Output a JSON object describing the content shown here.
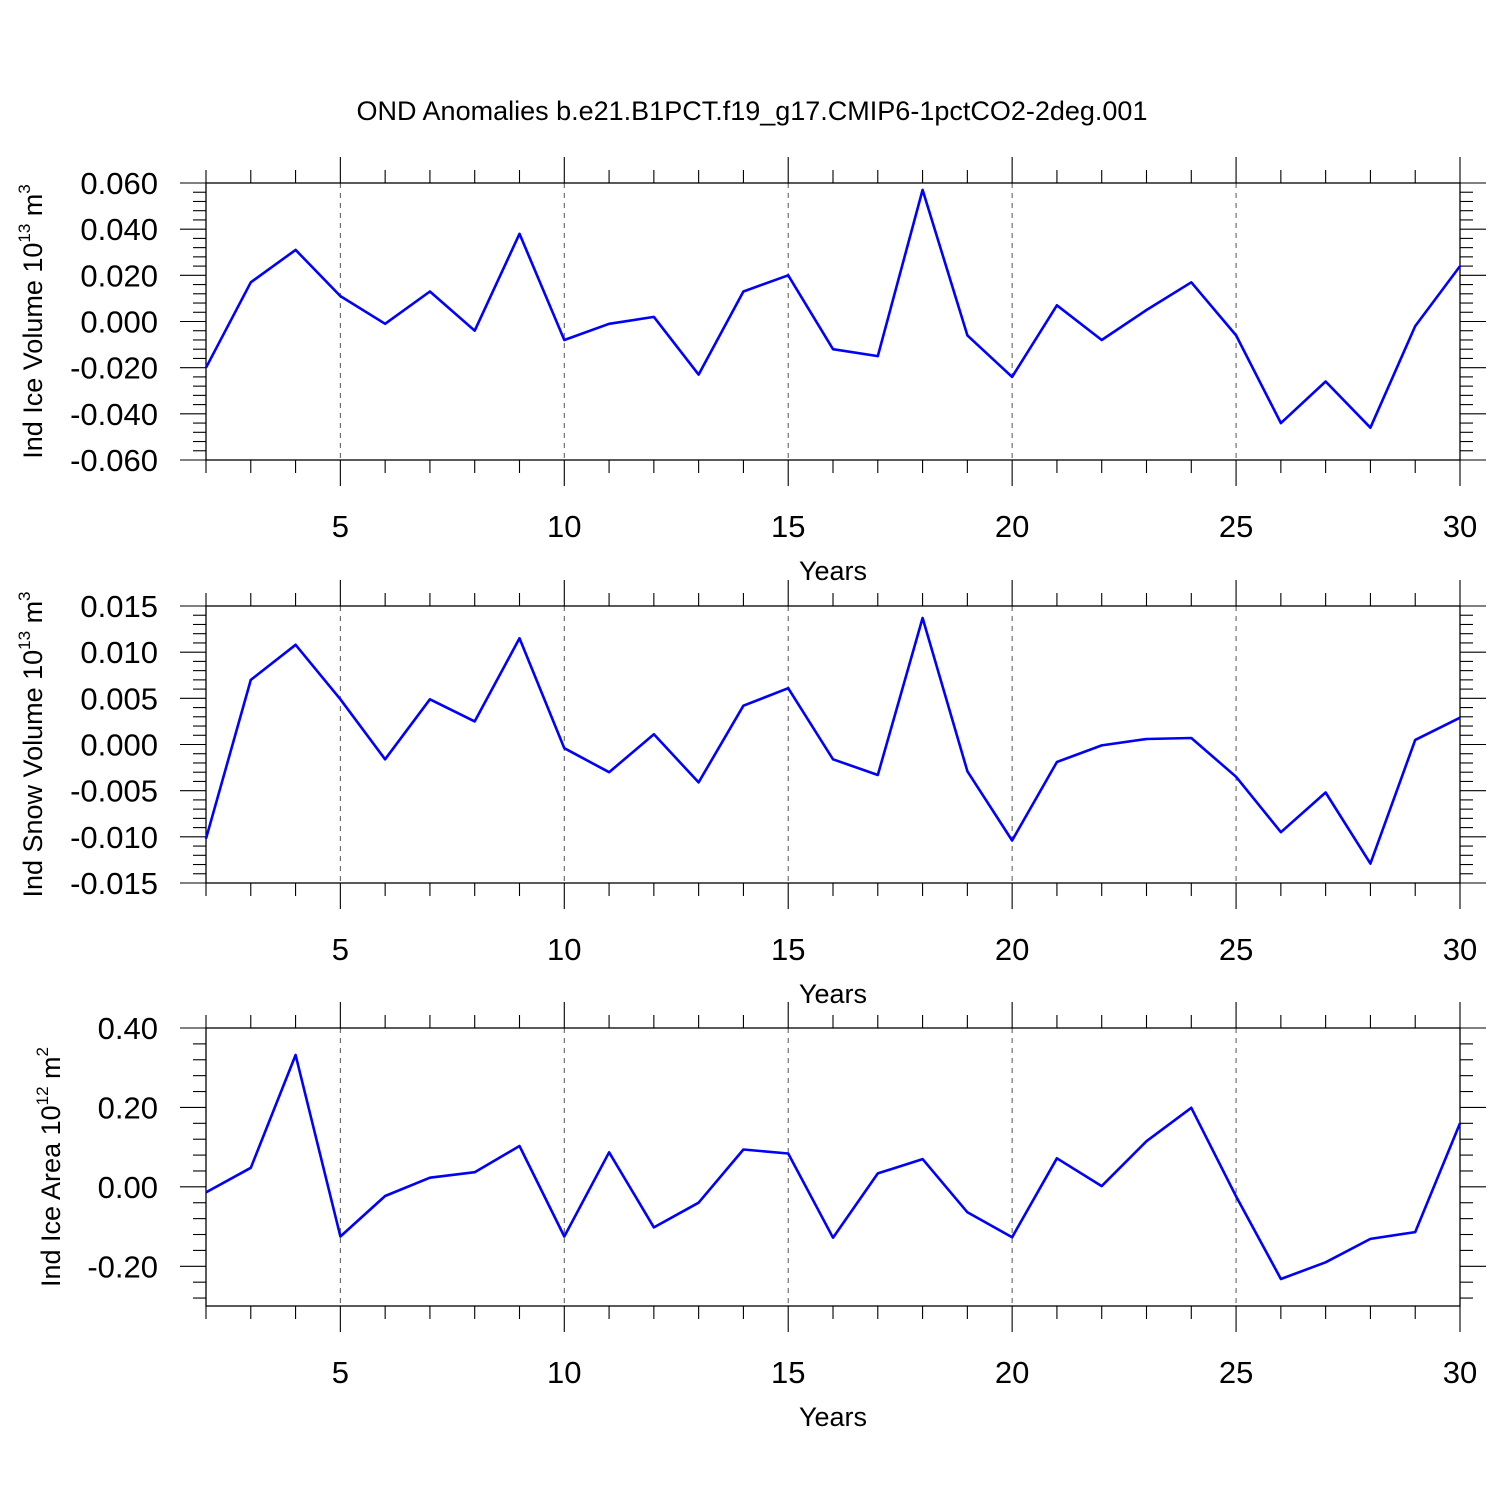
{
  "title": "OND Anomalies b.e21.B1PCT.f19_g17.CMIP6-1pctCO2-2deg.001",
  "line_color": "#0000ff",
  "chart_data": [
    {
      "type": "line",
      "ylabel": {
        "pre": "Ind Ice Volume 10",
        "sup": "13",
        "post": " m",
        "sup2": "3"
      },
      "xlabel": "Years",
      "xlim": [
        2,
        30
      ],
      "ylim": [
        -0.06,
        0.06
      ],
      "xticks": [
        5,
        10,
        15,
        20,
        25,
        30
      ],
      "yticks": [
        -0.06,
        -0.04,
        -0.02,
        0.0,
        0.02,
        0.04,
        0.06
      ],
      "ytick_labels": [
        "-0.060",
        "-0.040",
        "-0.020",
        "0.000",
        "0.020",
        "0.040",
        "0.060"
      ],
      "grid": "vertical dashed at major x ticks",
      "x": [
        2,
        3,
        4,
        5,
        6,
        7,
        8,
        9,
        10,
        11,
        12,
        13,
        14,
        15,
        16,
        17,
        18,
        19,
        20,
        21,
        22,
        23,
        24,
        25,
        26,
        27,
        28,
        29,
        30
      ],
      "values": [
        -0.02,
        0.017,
        0.031,
        0.011,
        -0.001,
        0.013,
        -0.004,
        0.038,
        -0.008,
        -0.001,
        0.002,
        -0.023,
        0.013,
        0.02,
        -0.012,
        -0.015,
        0.057,
        -0.006,
        -0.024,
        0.007,
        -0.008,
        0.005,
        0.017,
        -0.006,
        -0.044,
        -0.026,
        -0.046,
        -0.002,
        0.024
      ]
    },
    {
      "type": "line",
      "ylabel": {
        "pre": "Ind Snow Volume 10",
        "sup": "13",
        "post": " m",
        "sup2": "3"
      },
      "xlabel": "Years",
      "xlim": [
        2,
        30
      ],
      "ylim": [
        -0.015,
        0.015
      ],
      "xticks": [
        5,
        10,
        15,
        20,
        25,
        30
      ],
      "yticks": [
        -0.015,
        -0.01,
        -0.005,
        0.0,
        0.005,
        0.01,
        0.015
      ],
      "ytick_labels": [
        "-0.015",
        "-0.010",
        "-0.005",
        "0.000",
        "0.005",
        "0.010",
        "0.015"
      ],
      "grid": "vertical dashed at major x ticks",
      "x": [
        2,
        3,
        4,
        5,
        6,
        7,
        8,
        9,
        10,
        11,
        12,
        13,
        14,
        15,
        16,
        17,
        18,
        19,
        20,
        21,
        22,
        23,
        24,
        25,
        26,
        27,
        28,
        29,
        30
      ],
      "values": [
        -0.0102,
        0.007,
        0.0108,
        0.0049,
        -0.0016,
        0.0049,
        0.0025,
        0.0115,
        -0.0004,
        -0.003,
        0.0011,
        -0.0041,
        0.0042,
        0.0061,
        -0.0016,
        -0.0033,
        0.0137,
        -0.0029,
        -0.0104,
        -0.0019,
        -0.0001,
        0.0006,
        0.0007,
        -0.0035,
        -0.0095,
        -0.0052,
        -0.0129,
        0.0005,
        0.0029
      ]
    },
    {
      "type": "line",
      "ylabel": {
        "pre": "Ind Ice Area 10",
        "sup": "12",
        "post": " m",
        "sup2": "2"
      },
      "xlabel": "Years",
      "xlim": [
        2,
        30
      ],
      "ylim": [
        -0.3,
        0.4
      ],
      "xticks": [
        5,
        10,
        15,
        20,
        25,
        30
      ],
      "yticks": [
        -0.2,
        0.0,
        0.2,
        0.4
      ],
      "ytick_labels": [
        "-0.20",
        "0.00",
        "0.20",
        "0.40"
      ],
      "grid": "vertical dashed at major x ticks",
      "x": [
        2,
        3,
        4,
        5,
        6,
        7,
        8,
        9,
        10,
        11,
        12,
        13,
        14,
        15,
        16,
        17,
        18,
        19,
        20,
        21,
        22,
        23,
        24,
        25,
        26,
        27,
        28,
        29,
        30
      ],
      "values": [
        -0.014,
        0.048,
        0.332,
        -0.125,
        -0.023,
        0.023,
        0.037,
        0.103,
        -0.125,
        0.087,
        -0.102,
        -0.04,
        0.094,
        0.084,
        -0.128,
        0.034,
        0.07,
        -0.064,
        -0.127,
        0.072,
        0.002,
        0.115,
        0.199,
        -0.024,
        -0.232,
        -0.19,
        -0.131,
        -0.114,
        0.16
      ]
    }
  ]
}
